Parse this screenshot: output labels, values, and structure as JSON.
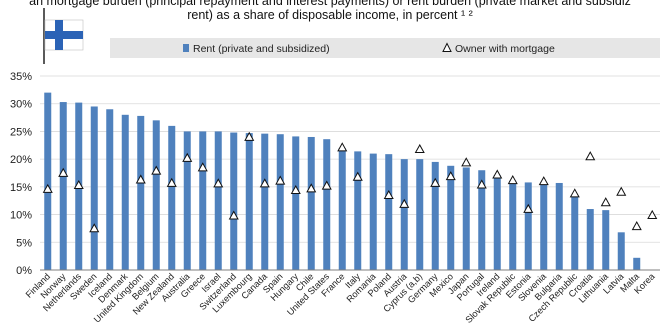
{
  "title": {
    "line1": "an mortgage burden (principal repayment and interest payments) or rent burden (private market and subsidiz",
    "line2": "rent) as a share of disposable income, in percent ¹ ²"
  },
  "colors": {
    "bar": "#4f81bd",
    "legend_band": "#e6e6e6",
    "flag_blue": "#2b63b6",
    "marker_stroke": "#111111"
  },
  "flag_icon": "finland-flag",
  "chart_data": {
    "type": "bar",
    "categories": [
      "Finland",
      "Norway",
      "Netherlands",
      "Sweden",
      "Iceland",
      "Denmark",
      "United Kingdom",
      "Belgium",
      "New Zealand",
      "Australia",
      "Greece",
      "Israel",
      "Switzerland",
      "Luxembourg",
      "Canada",
      "Spain",
      "Hungary",
      "Chile",
      "United States",
      "France",
      "Italy",
      "Romania",
      "Poland",
      "Austria",
      "Cyprus (a,b)",
      "Germany",
      "Mexico",
      "Japan",
      "Portugal",
      "Ireland",
      "Slovak Republic",
      "Estonia",
      "Slovenia",
      "Bulgaria",
      "Czech Republic",
      "Croatia",
      "Lithuania",
      "Latvia",
      "Malta",
      "Korea"
    ],
    "series": [
      {
        "name": "Rent (private and subsidized)",
        "type": "bar",
        "values": [
          32,
          30.3,
          30.2,
          29.5,
          29,
          28,
          27.8,
          27,
          26,
          25,
          25,
          25,
          24.8,
          24.7,
          24.6,
          24.5,
          24.1,
          24,
          23.6,
          22,
          21.4,
          21,
          20.9,
          20,
          20,
          19.5,
          18.8,
          18.5,
          18,
          17.1,
          16.1,
          15.8,
          15.7,
          15.7,
          13.5,
          11,
          10.8,
          6.8,
          2.2,
          0
        ]
      },
      {
        "name": "Owner with mortgage",
        "type": "marker",
        "values": [
          14.6,
          17.5,
          15.3,
          7.5,
          null,
          null,
          16.3,
          17.9,
          15.7,
          20.2,
          18.5,
          15.6,
          9.8,
          24,
          15.6,
          16.1,
          14.4,
          14.7,
          15.2,
          22.1,
          16.8,
          null,
          13.5,
          11.9,
          21.8,
          15.7,
          16.9,
          19.4,
          15.4,
          17.2,
          16.2,
          11,
          16,
          null,
          13.8,
          20.5,
          12.2,
          14.1,
          7.9,
          9.9
        ]
      }
    ],
    "xlabel": "",
    "ylabel": "",
    "ylim": [
      0,
      35
    ],
    "yticks": [
      0,
      5,
      10,
      15,
      20,
      25,
      30,
      35
    ],
    "ytick_labels": [
      "0%",
      "5%",
      "10%",
      "15%",
      "20%",
      "25%",
      "30%",
      "35%"
    ],
    "grid": true,
    "legend_placement": "top"
  }
}
